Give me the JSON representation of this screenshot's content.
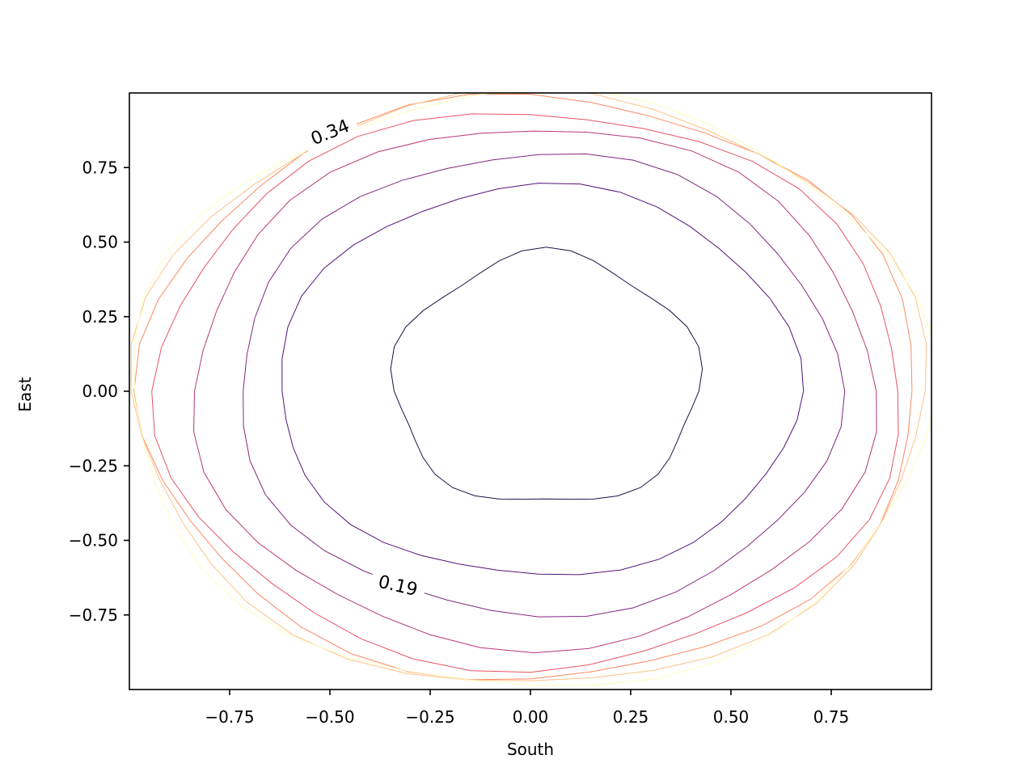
{
  "chart_data": {
    "type": "contour",
    "xlabel": "South",
    "ylabel": "East",
    "xlim": [
      -1.0,
      1.0
    ],
    "ylim": [
      -1.0,
      1.0
    ],
    "x_ticks": [
      -0.75,
      -0.5,
      -0.25,
      0.0,
      0.25,
      0.5,
      0.75
    ],
    "x_tick_labels": [
      "−0.75",
      "−0.50",
      "−0.25",
      "0.00",
      "0.25",
      "0.50",
      "0.75"
    ],
    "y_ticks": [
      -0.75,
      -0.5,
      -0.25,
      0.0,
      0.25,
      0.5,
      0.75
    ],
    "y_tick_labels": [
      "−0.75",
      "−0.50",
      "−0.25",
      "0.00",
      "0.25",
      "0.50",
      "0.75"
    ],
    "grid": false,
    "colormap": "magma",
    "contour_levels": [
      {
        "color": "#1d1147",
        "rx": 0.38,
        "ry_top": 0.46,
        "ry_bottom": 0.38,
        "cx": 0.04,
        "label": ""
      },
      {
        "color": "#51127c",
        "rx": 0.65,
        "ry_top": 0.69,
        "ry_bottom": 0.62,
        "cx": 0.02,
        "label": ""
      },
      {
        "color": "#822681",
        "rx": 0.75,
        "ry_top": 0.8,
        "ry_bottom": 0.75,
        "cx": 0.02,
        "label": "0.19"
      },
      {
        "color": "#b73779",
        "rx": 0.85,
        "ry_top": 0.89,
        "ry_bottom": 0.86,
        "cx": 0.01,
        "label": ""
      },
      {
        "color": "#e75263",
        "rx": 0.93,
        "ry_top": 0.94,
        "ry_bottom": 0.93,
        "cx": 0.0,
        "label": ""
      },
      {
        "color": "#fc8961",
        "rx": 0.97,
        "ry_top": 0.99,
        "ry_bottom": 0.97,
        "cx": 0.0,
        "label": "0.34"
      },
      {
        "color": "#fec287",
        "rx": 0.99,
        "ry_top": 1.0,
        "ry_bottom": 0.99,
        "cx": 0.0,
        "label": ""
      },
      {
        "color": "#fcfdbf",
        "rx": 1.0,
        "ry_top": 1.0,
        "ry_bottom": 1.0,
        "cx": 0.0,
        "label": ""
      }
    ],
    "labels": [
      {
        "text": "0.19",
        "x": -0.33,
        "y": -0.65,
        "angle": 13
      },
      {
        "text": "0.34",
        "x": -0.5,
        "y": 0.87,
        "angle": -22
      }
    ]
  }
}
